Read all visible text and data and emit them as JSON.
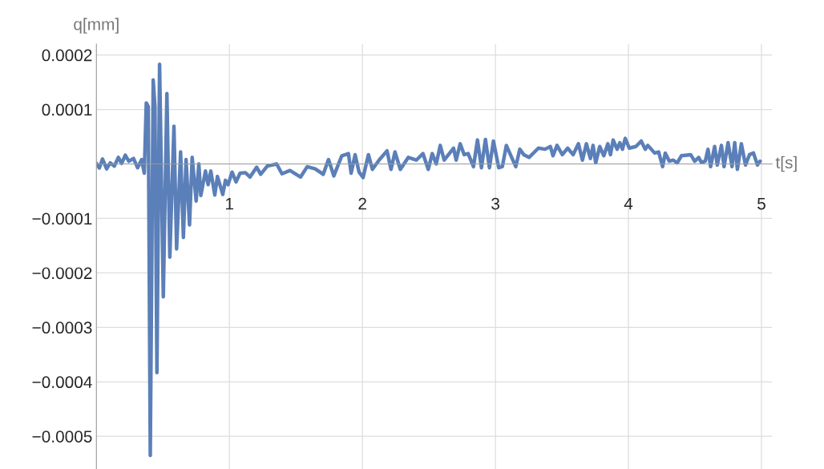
{
  "chart_data": {
    "type": "line",
    "xlabel": "t[s]",
    "ylabel": "q[mm]",
    "xlim": [
      0,
      5.08
    ],
    "ylim": [
      -0.00056,
      0.00022
    ],
    "xticks": [
      1,
      2,
      3,
      4,
      5
    ],
    "yticks": [
      0.0002,
      0.0001,
      {
        "value": -0.0001,
        "label": "−0.0001"
      },
      {
        "value": -0.0002,
        "label": "−0.0002"
      },
      {
        "value": -0.0003,
        "label": "−0.0003"
      },
      {
        "value": -0.0004,
        "label": "−0.0004"
      },
      {
        "value": -0.0005,
        "label": "−0.0005"
      }
    ],
    "grid": true,
    "legend": false,
    "marker": "none",
    "line_style": "solid",
    "x": [
      0,
      0.022,
      0.046,
      0.077,
      0.104,
      0.135,
      0.165,
      0.19,
      0.217,
      0.244,
      0.279,
      0.31,
      0.34,
      0.36,
      0.375,
      0.39,
      0.405,
      0.427,
      0.44,
      0.455,
      0.475,
      0.503,
      0.53,
      0.552,
      0.583,
      0.603,
      0.633,
      0.654,
      0.674,
      0.7,
      0.72,
      0.75,
      0.77,
      0.785,
      0.82,
      0.84,
      0.86,
      0.89,
      0.91,
      0.95,
      0.97,
      0.99,
      1.02,
      1.05,
      1.08,
      1.12,
      1.155,
      1.205,
      1.235,
      1.285,
      1.355,
      1.395,
      1.455,
      1.535,
      1.585,
      1.645,
      1.705,
      1.745,
      1.785,
      1.845,
      1.895,
      1.915,
      1.945,
      1.975,
      2.005,
      2.045,
      2.075,
      2.125,
      2.185,
      2.215,
      2.245,
      2.285,
      2.345,
      2.405,
      2.455,
      2.495,
      2.525,
      2.555,
      2.585,
      2.615,
      2.685,
      2.705,
      2.735,
      2.765,
      2.795,
      2.835,
      2.865,
      2.895,
      2.925,
      2.955,
      2.985,
      3.025,
      3.052,
      3.082,
      3.153,
      3.183,
      3.213,
      3.253,
      3.323,
      3.373,
      3.413,
      3.433,
      3.463,
      3.503,
      3.543,
      3.584,
      3.624,
      3.654,
      3.684,
      3.714,
      3.734,
      3.754,
      3.784,
      3.815,
      3.845,
      3.865,
      3.885,
      3.915,
      3.935,
      3.955,
      3.976,
      4.006,
      4.056,
      4.096,
      4.126,
      4.146,
      4.197,
      4.227,
      4.257,
      4.277,
      4.307,
      4.337,
      4.367,
      4.398,
      4.468,
      4.498,
      4.528,
      4.548,
      4.578,
      4.598,
      4.618,
      4.648,
      4.668,
      4.699,
      4.719,
      4.749,
      4.779,
      4.799,
      4.819,
      4.849,
      4.88,
      4.91,
      4.94,
      4.97,
      4.99
    ],
    "series": [
      {
        "color": "#5b7fb8",
        "values": [
          1e-06,
          -7.5e-06,
          9e-06,
          -9e-06,
          2e-06,
          -4e-06,
          1.2e-05,
          1e-06,
          1.6e-05,
          5e-06,
          1e-05,
          -7e-06,
          8e-06,
          -1.7e-05,
          0.000112,
          0.000105,
          -0.000535,
          0.000154,
          0.000105,
          -0.000383,
          0.000183,
          -0.000244,
          0.000129,
          -0.000171,
          6.9e-05,
          -0.000156,
          2.2e-05,
          -0.000135,
          8e-06,
          -0.000112,
          1.2e-05,
          -6.8e-05,
          0,
          -5.8e-05,
          -1.3e-05,
          -3.8e-05,
          -1.3e-05,
          -5.7e-05,
          -2.3e-05,
          -5.6e-05,
          -3e-05,
          -3.8e-05,
          -1.5e-05,
          -3.3e-05,
          -1.7e-05,
          -1.6e-05,
          -2.4e-05,
          -6e-06,
          -1.9e-05,
          -4e-06,
          0,
          -1.8e-05,
          -1.2e-05,
          -2.4e-05,
          -5e-06,
          -9e-06,
          -1.9e-05,
          8e-06,
          -2.2e-05,
          1.5e-05,
          1.9e-05,
          -1.7e-05,
          1.7e-05,
          -1.5e-05,
          -2.5e-05,
          1.7e-05,
          -1e-05,
          7e-06,
          2.4e-05,
          -1e-05,
          2.2e-05,
          -1e-05,
          1.2e-05,
          7e-06,
          1.9e-05,
          -1e-05,
          1.9e-05,
          0,
          3.4e-05,
          7e-06,
          2.9e-05,
          7e-06,
          3.7e-05,
          1.7e-05,
          1.9e-05,
          -5e-06,
          4.4e-05,
          -7e-06,
          4.5e-05,
          -7e-06,
          4.2e-05,
          -7e-06,
          -5e-06,
          3.4e-05,
          -5e-06,
          2.7e-05,
          1.7e-05,
          1.2e-05,
          2.9e-05,
          2.7e-05,
          3.2e-05,
          1.5e-05,
          3.4e-05,
          1.7e-05,
          2.9e-05,
          1.7e-05,
          3.7e-05,
          7e-06,
          3.7e-05,
          1e-05,
          3.4e-05,
          2e-06,
          3.2e-05,
          1.5e-05,
          3.7e-05,
          1.7e-05,
          4.4e-05,
          2.7e-05,
          3.9e-05,
          2.7e-05,
          4.7e-05,
          2.9e-05,
          3.2e-05,
          4.2e-05,
          2.7e-05,
          3.4e-05,
          2e-05,
          2.2e-05,
          -5e-06,
          2e-05,
          5e-06,
          7e-06,
          2e-06,
          1.5e-05,
          1.7e-05,
          5e-06,
          1.2e-05,
          3e-06,
          5e-06,
          2.7e-05,
          -5e-06,
          3.2e-05,
          -2e-06,
          3.4e-05,
          -5e-06,
          3.9e-05,
          -5e-06,
          3.9e-05,
          -1e-05,
          3.7e-05,
          -2e-06,
          1.7e-05,
          2e-05,
          -2e-06,
          5e-06
        ]
      }
    ]
  }
}
